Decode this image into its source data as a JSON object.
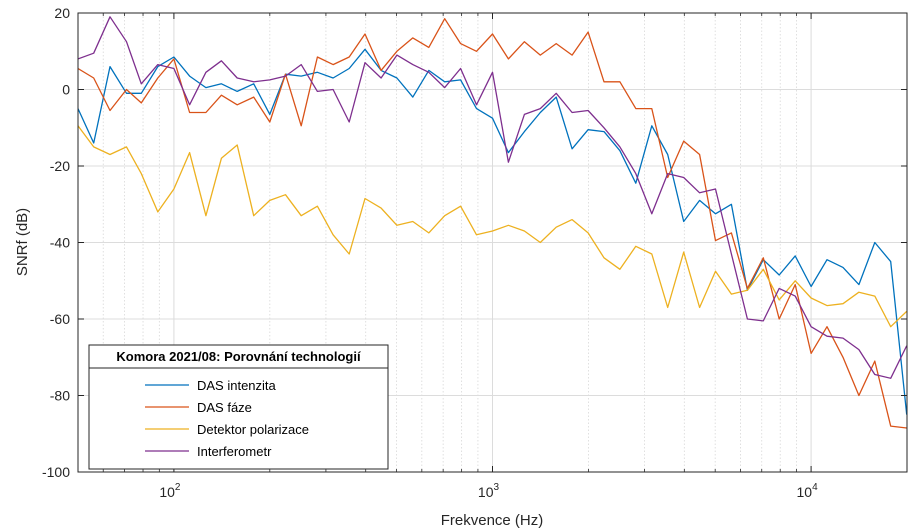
{
  "chart_data": {
    "type": "line",
    "title": "",
    "xlabel": "Frekvence (Hz)",
    "ylabel": "SNRf (dB)",
    "xscale": "log",
    "xlim": [
      50,
      20000
    ],
    "ylim": [
      -100,
      20
    ],
    "grid": true,
    "legend": {
      "title": "Komora 2021/08: Porovnání technologií",
      "position": "bottom-left"
    },
    "x_ticks": [
      {
        "value": 100,
        "base": "10",
        "exp": "2"
      },
      {
        "value": 1000,
        "base": "10",
        "exp": "3"
      },
      {
        "value": 10000,
        "base": "10",
        "exp": "4"
      }
    ],
    "y_ticks": [
      "20",
      "0",
      "-20",
      "-40",
      "-60",
      "-80",
      "-100"
    ],
    "x": [
      50,
      56,
      63,
      71,
      79,
      89,
      100,
      112,
      126,
      141,
      158,
      178,
      200,
      224,
      251,
      282,
      316,
      355,
      398,
      447,
      501,
      562,
      631,
      708,
      794,
      891,
      1000,
      1122,
      1259,
      1413,
      1585,
      1778,
      1995,
      2239,
      2512,
      2818,
      3162,
      3548,
      3981,
      4467,
      5012,
      5623,
      6310,
      7079,
      7943,
      8913,
      10000,
      11220,
      12589,
      14125,
      15849,
      17783,
      19953
    ],
    "series": [
      {
        "name": "DAS intenzita",
        "color": "#0072BD",
        "values": [
          -5,
          -14,
          6,
          -1,
          -1,
          6,
          8.5,
          3.5,
          0.5,
          1.5,
          -0.5,
          1.5,
          -6.5,
          4,
          3.5,
          4.5,
          3,
          5.5,
          10.5,
          5,
          3,
          -2,
          5,
          2,
          2.5,
          -5,
          -7.5,
          -16.5,
          -11,
          -6,
          -2,
          -15.5,
          -10.5,
          -11,
          -16,
          -24.5,
          -9.5,
          -17,
          -34.5,
          -29,
          -32.5,
          -30,
          -52.5,
          -44.5,
          -48.5,
          -43.5,
          -51.5,
          -44.5,
          -46.5,
          -51,
          -40,
          -45,
          -85
        ]
      },
      {
        "name": "DAS fáze",
        "color": "#D95319",
        "values": [
          5.5,
          3,
          -5.5,
          0,
          -3.5,
          3,
          8,
          -6,
          -6,
          -1.5,
          -4,
          -2,
          -8.5,
          4,
          -9.5,
          8.5,
          6.5,
          8.5,
          14.5,
          5,
          10,
          13.5,
          11,
          18.5,
          12,
          10,
          14.5,
          8,
          12.5,
          9,
          12,
          9,
          15,
          2,
          2,
          -5,
          -5,
          -23,
          -13.5,
          -17,
          -39.5,
          -37.5,
          -52,
          -44,
          -60,
          -51,
          -69,
          -62,
          -70,
          -80,
          -71,
          -88,
          -88.5
        ]
      },
      {
        "name": "Detektor polarizace",
        "color": "#EDB120",
        "values": [
          -9.5,
          -15,
          -17,
          -15,
          -22,
          -32,
          -26,
          -16.5,
          -33,
          -18,
          -14.5,
          -33,
          -29,
          -27.5,
          -33,
          -30.5,
          -38,
          -43,
          -28.5,
          -31,
          -35.5,
          -34.5,
          -37.5,
          -33,
          -30.5,
          -38,
          -37,
          -35.5,
          -37,
          -40,
          -36,
          -34,
          -37.5,
          -44,
          -47,
          -41,
          -43,
          -57,
          -42.5,
          -57,
          -47.5,
          -53.5,
          -52.5,
          -47,
          -55,
          -50,
          -54.5,
          -56.5,
          -56,
          -53,
          -54,
          -62,
          -58
        ]
      },
      {
        "name": "Interferometr",
        "color": "#7E2F8E",
        "values": [
          8,
          9.5,
          19,
          12.5,
          1.5,
          6.5,
          5.5,
          -4,
          4.5,
          7.5,
          3,
          2,
          2.5,
          3.5,
          6.5,
          -0.5,
          0,
          -8.5,
          7,
          3,
          9,
          6.5,
          4.5,
          0.5,
          5.5,
          -4,
          4.5,
          -19,
          -6.5,
          -5,
          -1,
          -6,
          -5.5,
          -10,
          -15,
          -22,
          -32.5,
          -22,
          -23,
          -27,
          -26,
          -43,
          -60,
          -60.5,
          -52,
          -54,
          -62,
          -64.5,
          -65,
          -68,
          -74.5,
          -75.5,
          -67
        ]
      }
    ]
  }
}
